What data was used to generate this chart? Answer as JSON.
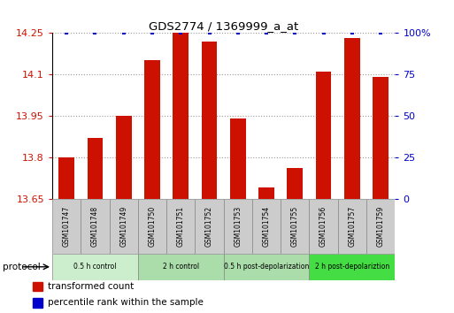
{
  "title": "GDS2774 / 1369999_a_at",
  "samples": [
    "GSM101747",
    "GSM101748",
    "GSM101749",
    "GSM101750",
    "GSM101751",
    "GSM101752",
    "GSM101753",
    "GSM101754",
    "GSM101755",
    "GSM101756",
    "GSM101757",
    "GSM101759"
  ],
  "bar_values": [
    13.8,
    13.87,
    13.95,
    14.15,
    14.25,
    14.22,
    13.94,
    13.69,
    13.76,
    14.11,
    14.23,
    14.09
  ],
  "percentile_values": [
    100,
    100,
    100,
    100,
    100,
    100,
    100,
    100,
    100,
    100,
    100,
    100
  ],
  "ylim": [
    13.65,
    14.25
  ],
  "yticks": [
    13.65,
    13.8,
    13.95,
    14.1,
    14.25
  ],
  "ytick_labels": [
    "13.65",
    "13.8",
    "13.95",
    "14.1",
    "14.25"
  ],
  "right_yticks": [
    0,
    25,
    50,
    75,
    100
  ],
  "right_ytick_labels": [
    "0",
    "25",
    "50",
    "75",
    "100%"
  ],
  "bar_color": "#CC1100",
  "percentile_color": "#0000CC",
  "bg_color": "#FFFFFF",
  "grid_color": "#999999",
  "group_defs": [
    {
      "start": 0,
      "end": 2,
      "label": "0.5 h control",
      "color": "#CCEECC"
    },
    {
      "start": 3,
      "end": 5,
      "label": "2 h control",
      "color": "#AADDAA"
    },
    {
      "start": 6,
      "end": 8,
      "label": "0.5 h post-depolarization",
      "color": "#AADDAA"
    },
    {
      "start": 9,
      "end": 11,
      "label": "2 h post-depolariztion",
      "color": "#44DD44"
    }
  ],
  "legend_entries": [
    {
      "label": "transformed count",
      "color": "#CC1100"
    },
    {
      "label": "percentile rank within the sample",
      "color": "#0000CC"
    }
  ],
  "sample_box_color": "#CCCCCC",
  "sample_box_edge": "#888888",
  "bar_width": 0.55
}
